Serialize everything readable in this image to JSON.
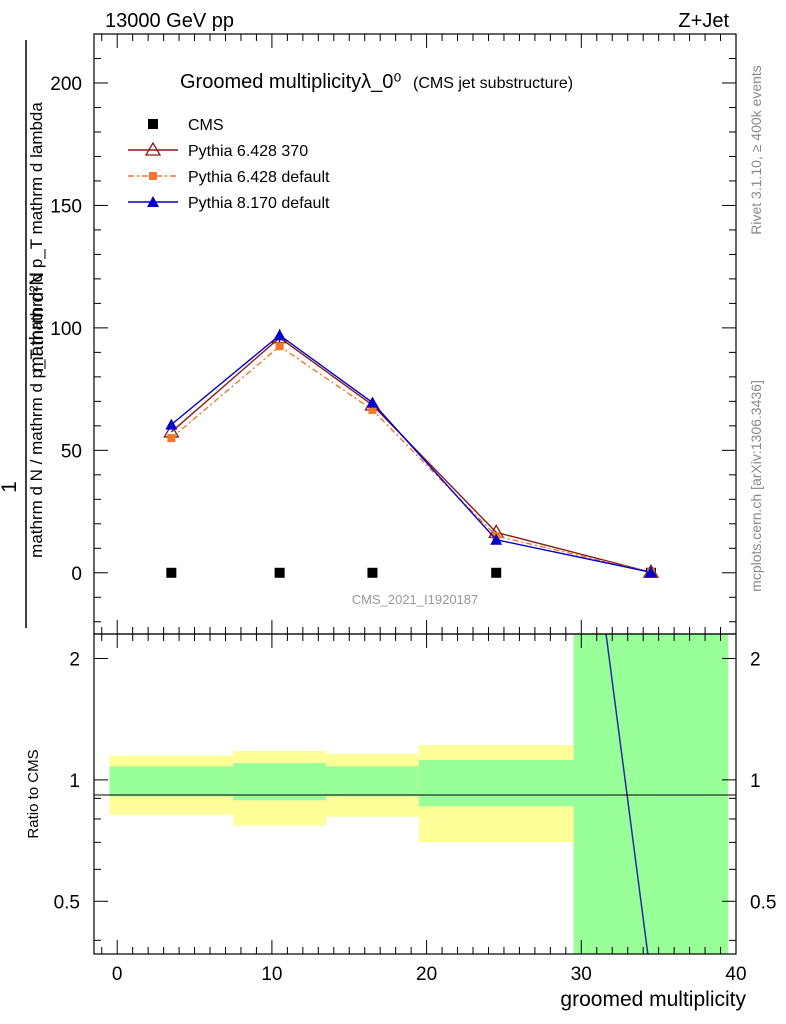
{
  "header": {
    "left": "13000 GeV pp",
    "right": "Z+Jet"
  },
  "side": {
    "rivet": "Rivet 3.1.10, ≥ 400k events",
    "mcplots": "mcplots.cern.ch [arXiv:1306.3436]"
  },
  "chart_data": {
    "type": "line",
    "title": "Groomed multiplicityλ_0⁰",
    "title_note": "(CMS jet substructure)",
    "watermark": "CMS_2021_I1920187",
    "xlabel": "groomed multiplicity",
    "ylabel_num": "1",
    "ylabel_den": "mathrm d N / mathrm d p_T mathrm d p_T mathrm d lambda",
    "ylabel_top": "mathrm d²N",
    "xlim": [
      -1.5,
      40
    ],
    "ylim": [
      -25,
      220
    ],
    "xticks": [
      0,
      10,
      20,
      30,
      40
    ],
    "yticks": [
      0,
      50,
      100,
      150,
      200
    ],
    "x": [
      3.5,
      10.5,
      16.5,
      24.5,
      34.5
    ],
    "bin_edges": [
      -0.5,
      7.5,
      13.5,
      19.5,
      29.5,
      39.5
    ],
    "series": [
      {
        "name": "CMS",
        "marker": "square",
        "color": "#000000",
        "values": [
          0,
          0,
          0,
          0,
          0
        ]
      },
      {
        "name": "Pythia 6.428 370",
        "marker": "triangle-open",
        "color": "#8b1a1a",
        "dash": "",
        "values": [
          57.5,
          96.0,
          68.5,
          16.5,
          0.2
        ]
      },
      {
        "name": "Pythia 6.428 default",
        "marker": "square-small",
        "color": "#f07828",
        "dash": "6,3,2,3",
        "values": [
          55.0,
          92.5,
          66.5,
          15.0,
          0.2
        ]
      },
      {
        "name": "Pythia 8.170 default",
        "marker": "triangle",
        "color": "#0000cc",
        "dash": "",
        "values": [
          60.5,
          97.0,
          69.5,
          13.5,
          0.2
        ]
      }
    ],
    "ratio": {
      "ylabel": "Ratio to CMS",
      "ylim": [
        0.37,
        2.3
      ],
      "yticks": [
        0.5,
        1,
        2
      ],
      "ytick_labels": [
        "0.5",
        "1",
        "2"
      ],
      "band_inner": [
        [
          0.91,
          1.08
        ],
        [
          0.89,
          1.1
        ],
        [
          0.91,
          1.08
        ],
        [
          0.86,
          1.12
        ],
        [
          0.37,
          2.3
        ]
      ],
      "band_outer": [
        [
          0.82,
          1.15
        ],
        [
          0.77,
          1.18
        ],
        [
          0.81,
          1.16
        ],
        [
          0.7,
          1.22
        ],
        [
          0.37,
          2.3
        ]
      ],
      "line": {
        "x": [
          31.6,
          34.3
        ],
        "y": [
          2.3,
          0.37
        ],
        "color": "#2a2aa0"
      }
    }
  }
}
